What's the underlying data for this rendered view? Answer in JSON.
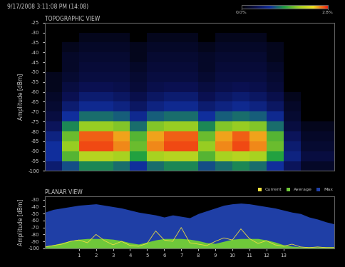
{
  "chart_data": [
    {
      "type": "heatmap",
      "subtitle": "9/17/2008 3:11:08 PM (14:08)",
      "title": "TOPOGRAPHIC VIEW",
      "y_label": "Amplitude [dBm]",
      "x_edges": [
        -1,
        0,
        1,
        2,
        3,
        4,
        5,
        6,
        7,
        8,
        9,
        10,
        11,
        12,
        13,
        14,
        15,
        16
      ],
      "y_edges": [
        -100,
        -95,
        -90,
        -85,
        -80,
        -75,
        -70,
        -65,
        -60,
        -55,
        -50,
        -45,
        -40,
        -35,
        -30,
        -25
      ],
      "cells": [
        [
          0.15,
          0.4,
          0.6,
          0.6,
          0.5,
          0.3,
          0.5,
          0.6,
          0.6,
          0.4,
          0.5,
          0.6,
          0.5,
          0.3,
          0.1,
          0.02,
          0.02
        ],
        [
          0.3,
          0.9,
          1.4,
          1.4,
          1.3,
          0.7,
          1.3,
          1.4,
          1.4,
          0.9,
          1.3,
          1.4,
          1.3,
          0.7,
          0.2,
          0.05,
          0.05
        ],
        [
          0.3,
          1.2,
          2.6,
          2.6,
          2.3,
          1.0,
          2.3,
          2.6,
          2.6,
          1.2,
          2.3,
          2.6,
          2.3,
          1.0,
          0.15,
          0.03,
          0.03
        ],
        [
          0.2,
          1.0,
          2.5,
          2.5,
          2.2,
          0.9,
          2.2,
          2.5,
          2.5,
          1.0,
          2.2,
          2.5,
          2.2,
          0.9,
          0.1,
          0.02,
          0.02
        ],
        [
          0.1,
          0.6,
          1.2,
          1.2,
          1.1,
          0.5,
          1.1,
          1.2,
          1.2,
          0.6,
          1.1,
          1.2,
          1.1,
          0.5,
          0.05,
          0.01,
          0.01
        ],
        [
          0.05,
          0.3,
          0.5,
          0.5,
          0.45,
          0.25,
          0.45,
          0.5,
          0.5,
          0.3,
          0.45,
          0.5,
          0.45,
          0.25,
          0.03,
          0,
          0
        ],
        [
          0.03,
          0.15,
          0.25,
          0.25,
          0.2,
          0.12,
          0.2,
          0.25,
          0.25,
          0.15,
          0.2,
          0.25,
          0.2,
          0.12,
          0.02,
          0,
          0
        ],
        [
          0.02,
          0.08,
          0.15,
          0.15,
          0.12,
          0.07,
          0.12,
          0.15,
          0.15,
          0.08,
          0.12,
          0.15,
          0.12,
          0.07,
          0.01,
          0,
          0
        ],
        [
          0.01,
          0.05,
          0.08,
          0.08,
          0.07,
          0.04,
          0.07,
          0.08,
          0.08,
          0.05,
          0.07,
          0.08,
          0.07,
          0.04,
          0,
          0,
          0
        ],
        [
          0.01,
          0.03,
          0.05,
          0.05,
          0.05,
          0.03,
          0.05,
          0.05,
          0.05,
          0.03,
          0.05,
          0.05,
          0.05,
          0.03,
          0,
          0,
          0
        ],
        [
          0,
          0.02,
          0.04,
          0.04,
          0.04,
          0.02,
          0.04,
          0.04,
          0.04,
          0.02,
          0.04,
          0.04,
          0.04,
          0.02,
          0,
          0,
          0
        ],
        [
          0,
          0.02,
          0.03,
          0.03,
          0.03,
          0.01,
          0.03,
          0.03,
          0.03,
          0.02,
          0.03,
          0.03,
          0.03,
          0.01,
          0,
          0,
          0
        ],
        [
          0,
          0.01,
          0.02,
          0.02,
          0.02,
          0.01,
          0.02,
          0.02,
          0.02,
          0.01,
          0.02,
          0.02,
          0.02,
          0.01,
          0,
          0,
          0
        ],
        [
          0,
          0,
          0.01,
          0.01,
          0.01,
          0,
          0.01,
          0.01,
          0.01,
          0,
          0.01,
          0.01,
          0.01,
          0,
          0,
          0,
          0
        ],
        [
          0,
          0,
          0,
          0,
          0,
          0,
          0,
          0,
          0,
          0,
          0,
          0,
          0,
          0,
          0,
          0,
          0
        ]
      ],
      "color_range": [
        0,
        2.8
      ],
      "color_ticks": [
        {
          "value": 0,
          "label": "0.0%"
        },
        {
          "value": 2.8,
          "label": "2.8%"
        }
      ],
      "xlim": [
        -1,
        16
      ],
      "ylim": [
        -100,
        -25
      ],
      "yticks": [
        -25,
        -30,
        -35,
        -40,
        -45,
        -50,
        -55,
        -60,
        -65,
        -70,
        -75,
        -80,
        -85,
        -90,
        -95,
        -100
      ],
      "tick_labels": "y"
    },
    {
      "type": "area",
      "title": "PLANAR VIEW",
      "y_label": "Amplitude [dBm]",
      "x": [
        -1,
        -0.5,
        0,
        0.5,
        1,
        1.5,
        2,
        2.5,
        3,
        3.5,
        4,
        4.5,
        5,
        5.5,
        6,
        6.5,
        7,
        7.5,
        8,
        8.5,
        9,
        9.5,
        10,
        10.5,
        11,
        11.5,
        12,
        12.5,
        13,
        13.5,
        14,
        14.5,
        15,
        15.5,
        16
      ],
      "series": [
        {
          "name": "Max",
          "type": "area",
          "color": "#1f3fa6",
          "values": [
            -48,
            -44,
            -42,
            -40,
            -38,
            -37,
            -36,
            -38,
            -40,
            -42,
            -45,
            -48,
            -50,
            -52,
            -55,
            -52,
            -54,
            -56,
            -50,
            -46,
            -42,
            -38,
            -36,
            -35,
            -36,
            -38,
            -40,
            -42,
            -45,
            -48,
            -50,
            -55,
            -58,
            -62,
            -65
          ]
        },
        {
          "name": "Average",
          "type": "area",
          "color": "#6fc83a",
          "values": [
            -97,
            -95,
            -92,
            -89,
            -87,
            -86,
            -86,
            -86,
            -87,
            -89,
            -92,
            -94,
            -91,
            -88,
            -86,
            -86,
            -86,
            -87,
            -89,
            -92,
            -93,
            -90,
            -87,
            -86,
            -86,
            -86,
            -88,
            -91,
            -95,
            -97,
            -98,
            -98,
            -98,
            -98,
            -98
          ]
        },
        {
          "name": "Current",
          "type": "line",
          "color": "#f0e040",
          "values": [
            -98,
            -96,
            -94,
            -90,
            -88,
            -92,
            -80,
            -89,
            -95,
            -90,
            -96,
            -97,
            -93,
            -75,
            -88,
            -90,
            -70,
            -92,
            -94,
            -96,
            -90,
            -85,
            -88,
            -72,
            -86,
            -93,
            -89,
            -95,
            -97,
            -94,
            -98,
            -99,
            -98,
            -99,
            -99
          ]
        }
      ],
      "xlim": [
        -1,
        16
      ],
      "ylim": [
        -100,
        -25
      ],
      "xticks": [
        1,
        2,
        3,
        4,
        5,
        6,
        7,
        8,
        9,
        10,
        11,
        12,
        13
      ],
      "yticks": [
        -30,
        -40,
        -50,
        -60,
        -70,
        -80,
        -90,
        -100
      ],
      "legend": "upper right"
    }
  ]
}
